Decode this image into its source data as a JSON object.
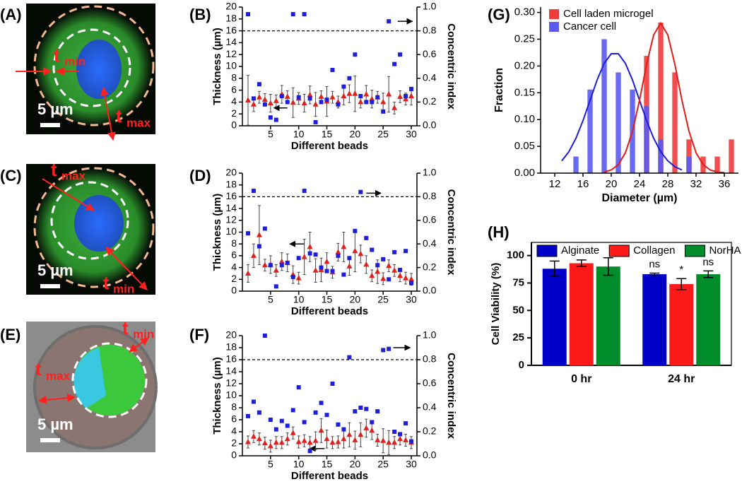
{
  "images": [
    {
      "label": "(A)",
      "marks": [
        {
          "symbol": "t",
          "subscript": "min"
        },
        {
          "symbol": "t",
          "subscript": "max"
        }
      ],
      "scale_bar": "5 µm"
    },
    {
      "label": "(C)",
      "marks": [
        {
          "symbol": "t",
          "subscript": "max"
        },
        {
          "symbol": "t",
          "subscript": "min"
        }
      ],
      "scale_bar": "5 µm"
    },
    {
      "label": "(E)",
      "marks": [
        {
          "symbol": "t",
          "subscript": "min"
        },
        {
          "symbol": "t",
          "subscript": "max"
        }
      ],
      "scale_bar": "5 µm"
    }
  ],
  "chart_data": [
    {
      "type": "scatter",
      "label": "(B)",
      "x_label": "Different beads",
      "y_label": "Thickness  (µm)",
      "y2_label": "Concentric index",
      "xlim": [
        0,
        31
      ],
      "xticks": [
        5,
        10,
        15,
        20,
        25,
        30
      ],
      "ylim": [
        0,
        20
      ],
      "yticks": [
        0,
        2,
        4,
        6,
        8,
        10,
        12,
        14,
        16,
        18,
        20
      ],
      "y2lim": [
        0,
        1
      ],
      "y2ticks": [
        {
          "value": 0,
          "label": "0.0"
        },
        0.2,
        0.4,
        0.6,
        0.8,
        {
          "value": 1,
          "label": "1.0"
        }
      ],
      "hline": 16,
      "x": [
        1,
        2,
        3,
        4,
        5,
        6,
        7,
        8,
        9,
        10,
        11,
        12,
        13,
        14,
        15,
        16,
        17,
        18,
        19,
        20,
        21,
        22,
        23,
        24,
        25,
        26,
        27,
        28,
        29,
        30
      ],
      "series": [
        {
          "color": "#e0201b",
          "marker": "triangle",
          "values": [
            4.3,
            3.6,
            4.8,
            4.4,
            3.8,
            4.2,
            5.3,
            4.9,
            3.9,
            4.6,
            3.8,
            5.2,
            3.6,
            4.9,
            4.1,
            4.8,
            4.0,
            5.0,
            5.4,
            5.4,
            4.0,
            5.3,
            4.5,
            4.8,
            4.0,
            5.3,
            3.0,
            4.9,
            4.5,
            5.0
          ],
          "errors": [
            4.2,
            1.2,
            1.0,
            1.0,
            1.5,
            1.0,
            1.5,
            1.0,
            2.5,
            1.0,
            1.5,
            1.5,
            2.0,
            1.0,
            2.5,
            1.0,
            1.0,
            1.5,
            1.5,
            3.0,
            1.0,
            1.5,
            1.5,
            1.0,
            1.5,
            3.0,
            1.0,
            1.0,
            1.0,
            1.5
          ]
        },
        {
          "color": "#1f1fd6",
          "marker": "square",
          "axis": "y2",
          "values": [
            0.94,
            0.23,
            0.35,
            0.18,
            0.07,
            0.05,
            0.25,
            0.2,
            0.94,
            0.24,
            0.94,
            0.23,
            0.03,
            0.2,
            0.22,
            0.47,
            0.18,
            0.33,
            0.4,
            0.6,
            0.25,
            0.2,
            0.2,
            0.24,
            0.12,
            0.88,
            0.52,
            0.6,
            0.25,
            0.31
          ]
        }
      ]
    },
    {
      "type": "scatter",
      "label": "(D)",
      "x_label": "Different beads",
      "y_label": "Thickness  (µm)",
      "y2_label": "Concentric index",
      "xlim": [
        0,
        31
      ],
      "xticks": [
        5,
        10,
        15,
        20,
        25,
        30
      ],
      "ylim": [
        0,
        20
      ],
      "yticks": [
        0,
        2,
        4,
        6,
        8,
        10,
        12,
        14,
        16,
        18,
        20
      ],
      "y2lim": [
        0,
        1
      ],
      "y2ticks": [
        {
          "value": 0,
          "label": "0.0"
        },
        0.2,
        0.4,
        0.6,
        0.8,
        {
          "value": 1,
          "label": "1.0"
        }
      ],
      "hline": 16,
      "x": [
        1,
        2,
        3,
        4,
        5,
        6,
        7,
        8,
        9,
        10,
        11,
        12,
        13,
        14,
        15,
        16,
        17,
        18,
        19,
        20,
        21,
        22,
        23,
        24,
        25,
        26,
        27,
        28,
        29,
        30
      ],
      "series": [
        {
          "color": "#e0201b",
          "marker": "triangle",
          "values": [
            3,
            6,
            9.5,
            4.4,
            4.5,
            3.5,
            5,
            4.8,
            2.8,
            2.2,
            5.8,
            7.5,
            3.5,
            3.6,
            5,
            3.2,
            6.6,
            7.5,
            4.2,
            6.8,
            6.3,
            4.5,
            2.6,
            3.3,
            2.1,
            4.3,
            3.5,
            2.6,
            2.2,
            2
          ],
          "errors": [
            1.5,
            2,
            5,
            1,
            1.5,
            1,
            1.5,
            1.5,
            1.5,
            1,
            3,
            2.5,
            2,
            2,
            1.5,
            1,
            1.5,
            2.5,
            1.5,
            3.5,
            1.5,
            1.5,
            1,
            2,
            1,
            1,
            1,
            1,
            1,
            1
          ]
        },
        {
          "color": "#1f1fd6",
          "marker": "square",
          "axis": "y2",
          "values": [
            0.49,
            0.85,
            0.38,
            0.53,
            0.22,
            0.04,
            0.22,
            0.24,
            0.12,
            0.28,
            0.85,
            0.32,
            0.31,
            0.2,
            0.17,
            0.17,
            0.3,
            0.14,
            0.28,
            0.51,
            0.84,
            0.45,
            0.35,
            0.22,
            0.27,
            0.1,
            0.33,
            0.18,
            0.34,
            0.07
          ]
        }
      ]
    },
    {
      "type": "scatter",
      "label": "(F)",
      "x_label": "Different beads",
      "y_label": "Thickness  (µm)",
      "y2_label": "Concentric index",
      "xlim": [
        0,
        31
      ],
      "xticks": [
        5,
        10,
        15,
        20,
        25,
        30
      ],
      "ylim": [
        0,
        20
      ],
      "yticks": [
        0,
        2,
        4,
        6,
        8,
        10,
        12,
        14,
        16,
        18,
        20
      ],
      "y2lim": [
        0,
        1
      ],
      "y2ticks": [
        {
          "value": 0,
          "label": "0.0"
        },
        0.2,
        0.4,
        0.6,
        0.8,
        {
          "value": 1,
          "label": "1.0"
        }
      ],
      "hline": 16,
      "x": [
        1,
        2,
        3,
        4,
        5,
        6,
        7,
        8,
        9,
        10,
        11,
        12,
        13,
        14,
        15,
        16,
        17,
        18,
        19,
        20,
        21,
        22,
        23,
        24,
        25,
        26,
        27,
        28,
        29,
        30
      ],
      "series": [
        {
          "color": "#e0201b",
          "marker": "triangle",
          "values": [
            2.3,
            3.2,
            2.8,
            2.1,
            1.6,
            2.2,
            2.2,
            2.8,
            3.8,
            2.3,
            2.5,
            2.2,
            2.5,
            4.2,
            2.8,
            2.2,
            2.3,
            2.8,
            3.5,
            2.6,
            3.5,
            4.6,
            4.2,
            2.6,
            2.5,
            2.2,
            2.2,
            2.8,
            2.6,
            2.2
          ],
          "errors": [
            1,
            1,
            1,
            1,
            1,
            1,
            1,
            1,
            1,
            1,
            1,
            1,
            1.5,
            2,
            1.5,
            1,
            1,
            1.5,
            2,
            1.5,
            2,
            1.5,
            1.5,
            1,
            2,
            2,
            1,
            1,
            1,
            1
          ]
        },
        {
          "color": "#1f1fd6",
          "marker": "square",
          "axis": "y2",
          "values": [
            0.33,
            0.45,
            0.36,
            1.0,
            0.3,
            0.22,
            0.29,
            0.25,
            0.38,
            0.57,
            0.28,
            0.04,
            0.36,
            0.44,
            0.34,
            0.6,
            0.26,
            0.22,
            0.82,
            0.37,
            0.4,
            0.39,
            0.28,
            0.37,
            0.88,
            0.89,
            0.2,
            0.18,
            0.27,
            0.12
          ]
        }
      ]
    },
    {
      "type": "bar",
      "label": "(G)",
      "x_label": "Diameter  (µm)",
      "y_label": "Fraction",
      "legend": "top-left",
      "xlim": [
        10,
        38
      ],
      "xticks": [
        12,
        16,
        20,
        24,
        28,
        32,
        36
      ],
      "ylim": [
        0,
        0.31
      ],
      "yticks": [
        {
          "value": 0,
          "label": "0.00"
        },
        0.05,
        {
          "value": 0.1,
          "label": "0.10"
        },
        0.15,
        {
          "value": 0.2,
          "label": "0.20"
        },
        0.25,
        {
          "value": 0.3,
          "label": "0.30"
        }
      ],
      "series": [
        {
          "name": "Cell laden microgel",
          "color": "#f03c3c",
          "kind": "bar",
          "x": [
            25,
            27,
            29,
            31,
            33,
            35,
            37
          ],
          "values": [
            0.219,
            0.281,
            0.188,
            0.063,
            0.031,
            0.031,
            0.063
          ]
        },
        {
          "name": "Cancer cell",
          "color": "#5a5af0",
          "kind": "bar",
          "x": [
            15,
            17,
            19,
            21,
            23,
            25,
            27,
            31
          ],
          "values": [
            0.031,
            0.156,
            0.25,
            0.188,
            0.156,
            0.125,
            0.063,
            0.031
          ]
        },
        {
          "color": "#1c1cd8",
          "kind": "line",
          "x": [
            13,
            14,
            15,
            16,
            17,
            18,
            19,
            20,
            21,
            22,
            23,
            24,
            25,
            26,
            27,
            28,
            29,
            30
          ],
          "values": [
            0.023,
            0.04,
            0.065,
            0.098,
            0.136,
            0.174,
            0.205,
            0.223,
            0.223,
            0.205,
            0.174,
            0.136,
            0.098,
            0.065,
            0.04,
            0.023,
            0.012,
            0.006
          ]
        },
        {
          "color": "#e01c1c",
          "kind": "line",
          "x": [
            19,
            20,
            21,
            22,
            23,
            24,
            25,
            26,
            27,
            28,
            29,
            30,
            31,
            32,
            33,
            34,
            35,
            36
          ],
          "values": [
            0.002,
            0.006,
            0.016,
            0.038,
            0.078,
            0.136,
            0.203,
            0.258,
            0.28,
            0.258,
            0.203,
            0.136,
            0.078,
            0.038,
            0.016,
            0.006,
            0.002,
            0.001
          ]
        }
      ]
    },
    {
      "type": "grouped-bar",
      "label": "(H)",
      "y_label": "Cell Viability (%)",
      "legend": "top",
      "categories": [
        "0 hr",
        "24 hr"
      ],
      "ylim": [
        0,
        112
      ],
      "yticks": [
        0,
        25,
        50,
        75,
        100
      ],
      "series": [
        {
          "name": "Alginate",
          "color": "#0000c8",
          "values": [
            88,
            83
          ],
          "errors": [
            7,
            1
          ]
        },
        {
          "name": "Collagen",
          "color": "#ff1a1a",
          "values": [
            93,
            74
          ],
          "errors": [
            3,
            5
          ]
        },
        {
          "name": "NorHA",
          "color": "#008c2a",
          "values": [
            90,
            83
          ],
          "errors": [
            8,
            3
          ]
        }
      ],
      "annotations": [
        "ns",
        "*",
        "ns"
      ]
    }
  ]
}
